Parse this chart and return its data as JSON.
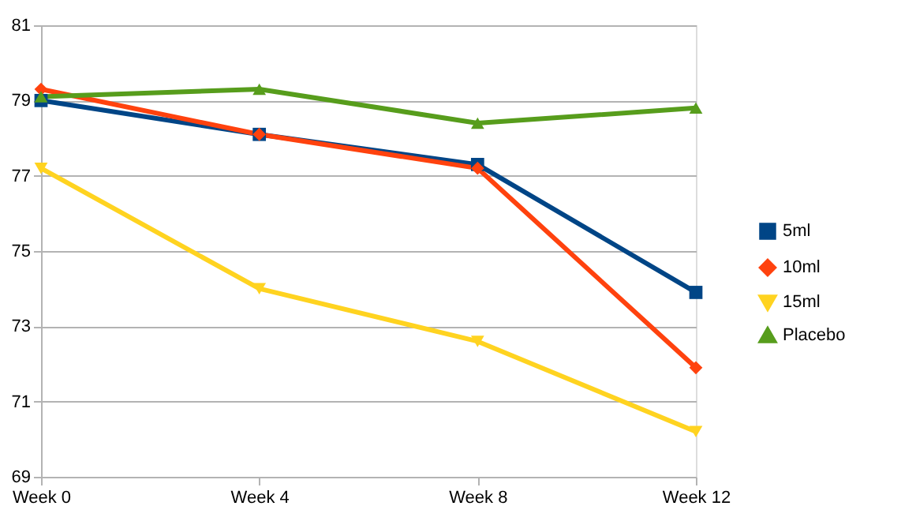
{
  "chart_data": {
    "type": "line",
    "categories": [
      "Week 0",
      "Week 4",
      "Week 8",
      "Week 12"
    ],
    "series": [
      {
        "name": "5ml",
        "color": "#004586",
        "marker": "square",
        "values": [
          79.0,
          78.1,
          77.3,
          73.9
        ]
      },
      {
        "name": "10ml",
        "color": "#ff420e",
        "marker": "diamond",
        "values": [
          79.3,
          78.1,
          77.2,
          71.9
        ]
      },
      {
        "name": "15ml",
        "color": "#ffd320",
        "marker": "triangle-down",
        "values": [
          77.2,
          74.0,
          72.6,
          70.2
        ]
      },
      {
        "name": "Placebo",
        "color": "#579d1c",
        "marker": "triangle",
        "values": [
          79.1,
          79.3,
          78.4,
          78.8
        ]
      }
    ],
    "ylim": [
      69,
      81
    ],
    "yticks": [
      69,
      71,
      73,
      75,
      77,
      79,
      81
    ],
    "grid": "y",
    "legend": "right",
    "line_style": "solid"
  }
}
